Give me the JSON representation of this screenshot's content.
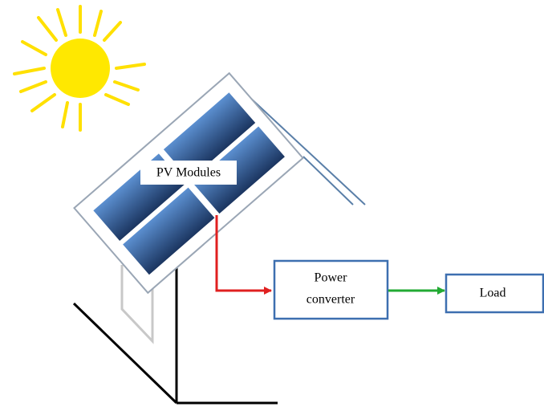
{
  "nodes": [
    {
      "label": "PV Modules"
    },
    {
      "label": [
        "Power",
        "converter"
      ]
    },
    {
      "label": "Load"
    }
  ]
}
